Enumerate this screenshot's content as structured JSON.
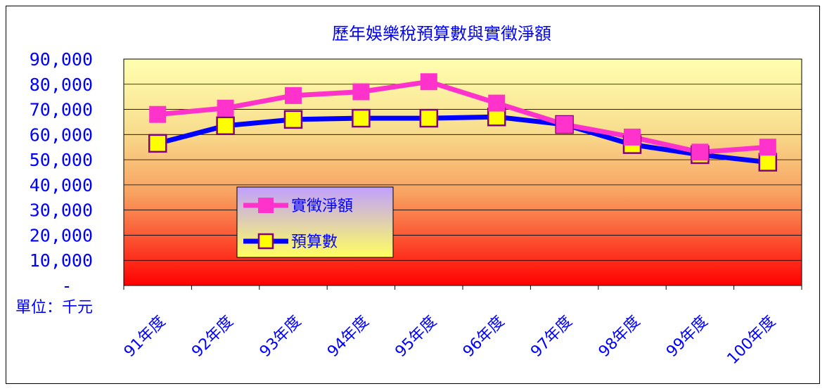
{
  "chart_data": {
    "type": "line",
    "title": "歷年娛樂稅預算數與實徵淨額",
    "unit_label": "單位：千元",
    "categories": [
      "91年度",
      "92年度",
      "93年度",
      "94年度",
      "95年度",
      "96年度",
      "97年度",
      "98年度",
      "99年度",
      "100年度"
    ],
    "y_tick_labels": [
      "-",
      "10,000",
      "20,000",
      "30,000",
      "40,000",
      "50,000",
      "60,000",
      "70,000",
      "80,000",
      "90,000"
    ],
    "ylim": [
      0,
      90000
    ],
    "grid": true,
    "legend_position": "left-center",
    "series": [
      {
        "name": "實徵淨額",
        "color": "#ff33cc",
        "marker": "square",
        "marker_fill": "#ff33cc",
        "values": [
          68000,
          70500,
          75500,
          77000,
          81000,
          72500,
          64000,
          59000,
          53000,
          55000
        ]
      },
      {
        "name": "預算數",
        "color": "#0000ff",
        "marker": "square",
        "marker_fill": "#ffff00",
        "values": [
          56500,
          63500,
          66000,
          66500,
          66500,
          67000,
          64000,
          56000,
          52000,
          49000
        ]
      }
    ],
    "colors": {
      "text": "#0000ff",
      "plot_top": "#ffff99",
      "plot_bottom": "#ff0000",
      "marker_border": "#800080"
    }
  }
}
